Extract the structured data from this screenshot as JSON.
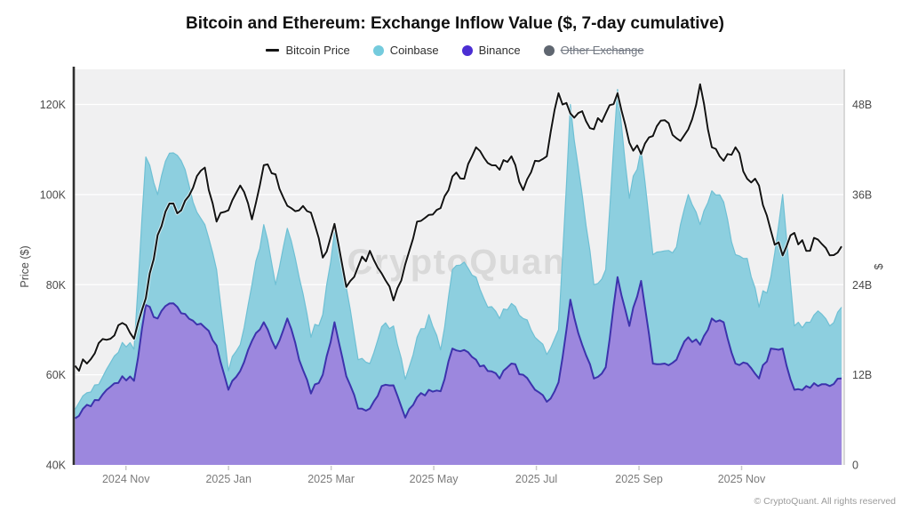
{
  "title": "Bitcoin and Ethereum: Exchange Inflow Value ($, 7-day cumulative)",
  "legend": [
    {
      "label": "Bitcoin Price",
      "marker": "line",
      "color": "#141414",
      "disabled": false
    },
    {
      "label": "Coinbase",
      "marker": "dot",
      "color": "#74cbdd",
      "disabled": false
    },
    {
      "label": "Binance",
      "marker": "dot",
      "color": "#4b2ed3",
      "disabled": false
    },
    {
      "label": "Other Exchange",
      "marker": "dot",
      "color": "#5f6670",
      "disabled": true
    }
  ],
  "watermark": "CryptoQuant",
  "footer": "© CryptoQuant. All rights reserved",
  "left_axis_title": "Price ($)",
  "right_axis_title": "$",
  "chart_data": {
    "type": "line+stacked-area",
    "x": {
      "start": "2024-10-01",
      "step_days": 7,
      "points": 66
    },
    "x_ticks": [
      {
        "label": "2024 Nov",
        "month_offset": 1
      },
      {
        "label": "2025 Jan",
        "month_offset": 3
      },
      {
        "label": "2025 Mar",
        "month_offset": 5
      },
      {
        "label": "2025 May",
        "month_offset": 7
      },
      {
        "label": "2025 Jul",
        "month_offset": 9
      },
      {
        "label": "2025 Sep",
        "month_offset": 11
      },
      {
        "label": "2025 Nov",
        "month_offset": 13
      }
    ],
    "left_axis": {
      "label": "Price ($)",
      "unit": "USD thousands",
      "ticks": [
        "40K",
        "60K",
        "80K",
        "100K",
        "120K"
      ],
      "tick_values": [
        40,
        60,
        80,
        100,
        120
      ],
      "range": [
        40,
        128
      ]
    },
    "right_axis": {
      "label": "$",
      "unit": "USD billions",
      "ticks": [
        "0",
        "12B",
        "24B",
        "36B",
        "48B"
      ],
      "tick_values": [
        0,
        12,
        24,
        36,
        48
      ],
      "range": [
        0,
        52
      ]
    },
    "grid": true,
    "legend_position": "top",
    "plot_bg": "#f0f0f1",
    "series": [
      {
        "name": "Bitcoin Price",
        "type": "line",
        "axis": "left",
        "unit": "K USD",
        "color": "#141414",
        "values": [
          62,
          62.5,
          67,
          68,
          71.5,
          68,
          77,
          91,
          98,
          96.5,
          101.5,
          106,
          94,
          96.5,
          102,
          94.5,
          106.5,
          104.5,
          97.5,
          96.5,
          96,
          86,
          93.5,
          79.5,
          84,
          87.5,
          82.5,
          76.5,
          84.5,
          94,
          95.5,
          97,
          104,
          103.5,
          110.5,
          107,
          105.5,
          108.5,
          101,
          107.5,
          108.5,
          122.5,
          118,
          118.5,
          114.5,
          118,
          122.5,
          111.5,
          109,
          113,
          116.5,
          112.5,
          114.5,
          124.5,
          110.5,
          107.5,
          110.5,
          103.5,
          102,
          92,
          86.5,
          91.5,
          87.5,
          90,
          86.5,
          88.5
        ]
      },
      {
        "name": "Binance",
        "type": "area-stacked",
        "axis": "right",
        "unit": "B USD",
        "fill": "#9c87de",
        "stroke": "#3c33ac",
        "values": [
          6.2,
          8,
          8.6,
          10.4,
          11.8,
          11.2,
          21.3,
          19.5,
          21.5,
          20.2,
          19.2,
          18.3,
          15.9,
          10,
          12.5,
          16.5,
          19,
          15.5,
          19.5,
          14,
          9.5,
          12,
          19,
          11.8,
          7.5,
          7.5,
          10.5,
          10.6,
          6.3,
          9,
          10,
          9.8,
          15.5,
          15.3,
          14,
          12.5,
          11.5,
          13.5,
          12,
          10,
          8.4,
          11,
          22,
          16,
          11.5,
          13,
          25,
          18.5,
          24.5,
          13.5,
          13.5,
          14,
          17,
          16,
          19.5,
          19,
          13.5,
          13.5,
          11.5,
          15.5,
          15.5,
          10,
          10.5,
          10.5,
          10.5,
          11.5
        ]
      },
      {
        "name": "Coinbase",
        "type": "area-stacked",
        "axis": "right",
        "unit": "B USD",
        "fill": "#8dcfdf",
        "stroke": "#6fc0d4",
        "values": [
          1.2,
          1.6,
          2.1,
          3.2,
          4.5,
          4.2,
          19.7,
          16.5,
          20,
          20.3,
          15.8,
          13.7,
          10.1,
          2.5,
          3.5,
          7.5,
          13,
          8.5,
          12,
          11,
          7.5,
          8,
          12,
          11.8,
          6.5,
          6,
          7.9,
          7.9,
          5.1,
          8,
          10,
          5.5,
          10.5,
          11.7,
          11,
          8.5,
          8,
          8,
          7.5,
          7,
          6.3,
          7,
          26,
          20,
          12.5,
          13,
          25,
          17,
          17.5,
          14.5,
          15,
          15,
          19,
          16,
          17,
          16,
          14.5,
          14,
          9.5,
          9.5,
          20.5,
          8.5,
          8.5,
          10,
          8,
          9.5
        ]
      },
      {
        "name": "Other Exchange",
        "type": "area-stacked",
        "axis": "right",
        "unit": "B USD",
        "disabled": true,
        "values": []
      }
    ]
  }
}
